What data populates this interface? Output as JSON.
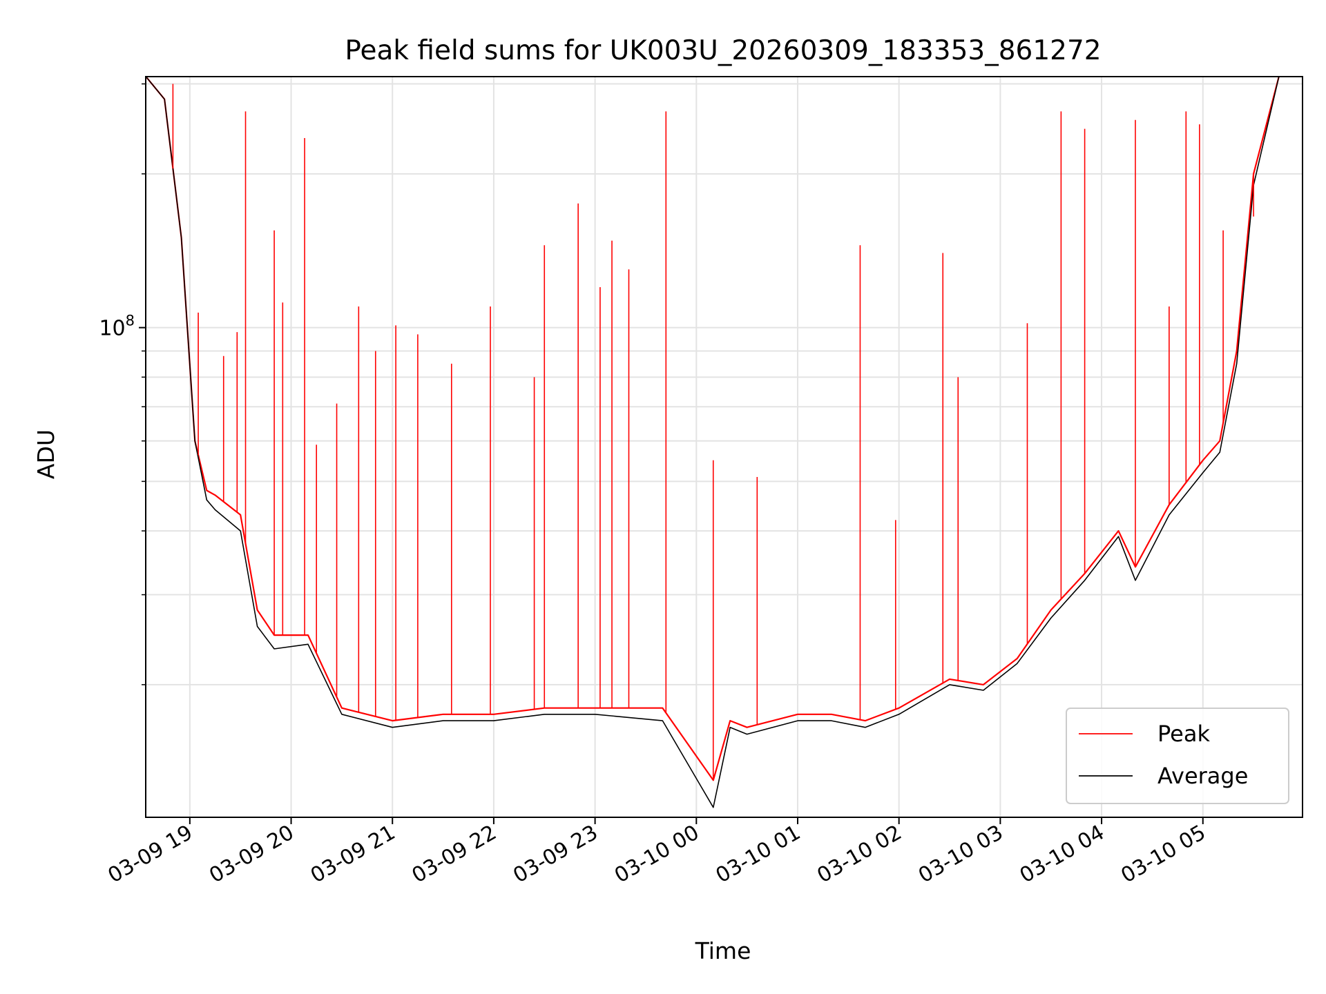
{
  "chart_data": {
    "type": "line",
    "title": "Peak field sums for UK003U_20260309_183353_861272",
    "xlabel": "Time",
    "ylabel": "ADU",
    "yscale": "log",
    "x_range": [
      "2026-03-09T18:33:53",
      "2026-03-10T05:59:00"
    ],
    "ylim": [
      11000000,
      310000000
    ],
    "grid": true,
    "legend_position": "lower right",
    "x_tick_labels": [
      "03-09 19",
      "03-09 20",
      "03-09 21",
      "03-09 22",
      "03-09 23",
      "03-10 00",
      "03-10 01",
      "03-10 02",
      "03-10 03",
      "03-10 04",
      "03-10 05"
    ],
    "x_ticks": [
      "2026-03-09T19:00",
      "2026-03-09T20:00",
      "2026-03-09T21:00",
      "2026-03-09T22:00",
      "2026-03-09T23:00",
      "2026-03-10T00:00",
      "2026-03-10T01:00",
      "2026-03-10T02:00",
      "2026-03-10T03:00",
      "2026-03-10T04:00",
      "2026-03-10T05:00"
    ],
    "y_tick_labels": [
      {
        "value": 100000000,
        "base": "10",
        "exp": "8"
      }
    ],
    "y_minor_ticks": [
      20000000,
      30000000,
      40000000,
      50000000,
      60000000,
      70000000,
      80000000,
      90000000,
      200000000,
      300000000
    ],
    "series": [
      {
        "name": "Peak",
        "color": "#ff0000",
        "x": [
          "2026-03-09T18:34",
          "2026-03-09T18:45",
          "2026-03-09T18:55",
          "2026-03-09T19:03",
          "2026-03-09T19:10",
          "2026-03-09T19:15",
          "2026-03-09T19:30",
          "2026-03-09T19:40",
          "2026-03-09T19:50",
          "2026-03-09T20:10",
          "2026-03-09T20:30",
          "2026-03-09T21:00",
          "2026-03-09T21:30",
          "2026-03-09T22:00",
          "2026-03-09T22:30",
          "2026-03-09T23:00",
          "2026-03-09T23:40",
          "2026-03-10T00:10",
          "2026-03-10T00:20",
          "2026-03-10T00:30",
          "2026-03-10T01:00",
          "2026-03-10T01:20",
          "2026-03-10T01:40",
          "2026-03-10T02:00",
          "2026-03-10T02:30",
          "2026-03-10T02:50",
          "2026-03-10T03:10",
          "2026-03-10T03:30",
          "2026-03-10T03:50",
          "2026-03-10T04:10",
          "2026-03-10T04:20",
          "2026-03-10T04:40",
          "2026-03-10T05:00",
          "2026-03-10T05:10",
          "2026-03-10T05:20",
          "2026-03-10T05:30",
          "2026-03-10T05:45"
        ],
        "values": [
          310000000,
          280000000,
          150000000,
          60000000,
          48000000,
          47000000,
          43000000,
          28000000,
          25000000,
          25000000,
          18000000,
          17000000,
          17500000,
          17500000,
          18000000,
          18000000,
          18000000,
          13000000,
          17000000,
          16500000,
          17500000,
          17500000,
          17000000,
          18000000,
          20500000,
          20000000,
          22500000,
          28000000,
          33000000,
          40000000,
          34000000,
          45000000,
          55000000,
          60000000,
          90000000,
          200000000,
          310000000
        ],
        "spikes": [
          {
            "x": "2026-03-09T18:50",
            "value": 300000000
          },
          {
            "x": "2026-03-09T19:05",
            "value": 107000000
          },
          {
            "x": "2026-03-09T19:20",
            "value": 88000000
          },
          {
            "x": "2026-03-09T19:28",
            "value": 98000000
          },
          {
            "x": "2026-03-09T19:33",
            "value": 265000000
          },
          {
            "x": "2026-03-09T19:50",
            "value": 155000000
          },
          {
            "x": "2026-03-09T19:55",
            "value": 112000000
          },
          {
            "x": "2026-03-09T20:08",
            "value": 235000000
          },
          {
            "x": "2026-03-09T20:15",
            "value": 59000000
          },
          {
            "x": "2026-03-09T20:27",
            "value": 71000000
          },
          {
            "x": "2026-03-09T20:40",
            "value": 110000000
          },
          {
            "x": "2026-03-09T20:50",
            "value": 90000000
          },
          {
            "x": "2026-03-09T21:02",
            "value": 101000000
          },
          {
            "x": "2026-03-09T21:15",
            "value": 97000000
          },
          {
            "x": "2026-03-09T21:35",
            "value": 85000000
          },
          {
            "x": "2026-03-09T21:58",
            "value": 110000000
          },
          {
            "x": "2026-03-09T22:24",
            "value": 80000000
          },
          {
            "x": "2026-03-09T22:30",
            "value": 145000000
          },
          {
            "x": "2026-03-09T22:50",
            "value": 175000000
          },
          {
            "x": "2026-03-09T23:03",
            "value": 120000000
          },
          {
            "x": "2026-03-09T23:10",
            "value": 148000000
          },
          {
            "x": "2026-03-09T23:20",
            "value": 130000000
          },
          {
            "x": "2026-03-09T23:42",
            "value": 265000000
          },
          {
            "x": "2026-03-10T00:10",
            "value": 55000000
          },
          {
            "x": "2026-03-10T00:36",
            "value": 51000000
          },
          {
            "x": "2026-03-10T01:37",
            "value": 145000000
          },
          {
            "x": "2026-03-10T01:58",
            "value": 42000000
          },
          {
            "x": "2026-03-10T02:26",
            "value": 140000000
          },
          {
            "x": "2026-03-10T02:35",
            "value": 80000000
          },
          {
            "x": "2026-03-10T03:16",
            "value": 102000000
          },
          {
            "x": "2026-03-10T03:36",
            "value": 265000000
          },
          {
            "x": "2026-03-10T03:50",
            "value": 245000000
          },
          {
            "x": "2026-03-10T04:20",
            "value": 255000000
          },
          {
            "x": "2026-03-10T04:40",
            "value": 110000000
          },
          {
            "x": "2026-03-10T04:50",
            "value": 265000000
          },
          {
            "x": "2026-03-10T04:58",
            "value": 250000000
          },
          {
            "x": "2026-03-10T05:12",
            "value": 155000000
          },
          {
            "x": "2026-03-10T05:30",
            "value": 165000000
          }
        ]
      },
      {
        "name": "Average",
        "color": "#000000",
        "x": [
          "2026-03-09T18:34",
          "2026-03-09T18:45",
          "2026-03-09T18:55",
          "2026-03-09T19:03",
          "2026-03-09T19:10",
          "2026-03-09T19:15",
          "2026-03-09T19:30",
          "2026-03-09T19:40",
          "2026-03-09T19:50",
          "2026-03-09T20:10",
          "2026-03-09T20:30",
          "2026-03-09T21:00",
          "2026-03-09T21:30",
          "2026-03-09T22:00",
          "2026-03-09T22:30",
          "2026-03-09T23:00",
          "2026-03-09T23:40",
          "2026-03-10T00:10",
          "2026-03-10T00:20",
          "2026-03-10T00:30",
          "2026-03-10T01:00",
          "2026-03-10T01:20",
          "2026-03-10T01:40",
          "2026-03-10T02:00",
          "2026-03-10T02:30",
          "2026-03-10T02:50",
          "2026-03-10T03:10",
          "2026-03-10T03:30",
          "2026-03-10T03:50",
          "2026-03-10T04:10",
          "2026-03-10T04:20",
          "2026-03-10T04:40",
          "2026-03-10T05:00",
          "2026-03-10T05:10",
          "2026-03-10T05:20",
          "2026-03-10T05:30",
          "2026-03-10T05:45"
        ],
        "values": [
          310000000,
          280000000,
          150000000,
          60000000,
          46000000,
          44000000,
          40000000,
          26000000,
          23500000,
          24000000,
          17500000,
          16500000,
          17000000,
          17000000,
          17500000,
          17500000,
          17000000,
          11500000,
          16500000,
          16000000,
          17000000,
          17000000,
          16500000,
          17500000,
          20000000,
          19500000,
          22000000,
          27000000,
          32000000,
          39000000,
          32000000,
          43000000,
          52000000,
          57000000,
          85000000,
          190000000,
          310000000
        ]
      }
    ]
  }
}
